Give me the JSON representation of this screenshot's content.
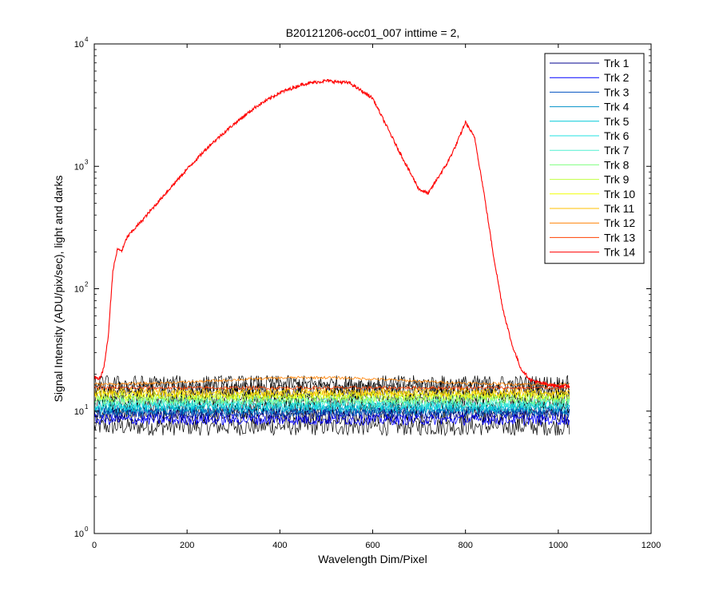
{
  "chart_data": {
    "type": "line",
    "title": "B20121206-occ01_007 inttime = 2,",
    "xlabel": "Wavelength Dim/Pixel",
    "ylabel": "Signal Intensity (ADU/pix/sec), light and darks",
    "xlim": [
      0,
      1200
    ],
    "ylim": [
      1,
      10000
    ],
    "y_scale": "log",
    "grid": false,
    "legend_position": "top-right",
    "x_ticks": [
      "0",
      "200",
      "400",
      "600",
      "800",
      "1000",
      "1200"
    ],
    "y_ticks": [
      {
        "base": "10",
        "exp": "0",
        "value": 1
      },
      {
        "base": "10",
        "exp": "1",
        "value": 10
      },
      {
        "base": "10",
        "exp": "2",
        "value": 100
      },
      {
        "base": "10",
        "exp": "3",
        "value": 1000
      },
      {
        "base": "10",
        "exp": "4",
        "value": 10000
      }
    ],
    "series": [
      {
        "name": "Trk 1",
        "color": "#00008f",
        "level": 9.5,
        "noise": 0.22
      },
      {
        "name": "Trk 2",
        "color": "#0000ff",
        "level": 8.5,
        "noise": 0.2
      },
      {
        "name": "Trk 3",
        "color": "#0050c0",
        "level": 9.8,
        "noise": 0.18
      },
      {
        "name": "Trk 4",
        "color": "#0090c8",
        "level": 10.3,
        "noise": 0.18
      },
      {
        "name": "Trk 5",
        "color": "#00c8d8",
        "level": 10.8,
        "noise": 0.18
      },
      {
        "name": "Trk 6",
        "color": "#20e0e0",
        "level": 11.2,
        "noise": 0.18
      },
      {
        "name": "Trk 7",
        "color": "#50f0d0",
        "level": 11.8,
        "noise": 0.18
      },
      {
        "name": "Trk 8",
        "color": "#80ff80",
        "level": 12.4,
        "noise": 0.17
      },
      {
        "name": "Trk 9",
        "color": "#c0ff40",
        "level": 13.0,
        "noise": 0.17
      },
      {
        "name": "Trk 10",
        "color": "#f0ff00",
        "level": 13.6,
        "noise": 0.16
      },
      {
        "name": "Trk 11",
        "color": "#ffc000",
        "level": 14.3,
        "noise": 0.15
      },
      {
        "name": "Trk 12",
        "color": "#ff8000",
        "level": 16.5,
        "noise": 0.05,
        "bump": 18.8
      },
      {
        "name": "Trk 13",
        "color": "#ff4000",
        "level": 15.5,
        "noise": 0.06
      },
      {
        "name": "Trk 14",
        "color": "#ff0000",
        "x": [
          0,
          10,
          20,
          30,
          40,
          50,
          60,
          70,
          80,
          100,
          150,
          200,
          250,
          300,
          350,
          400,
          450,
          500,
          550,
          600,
          650,
          680,
          700,
          720,
          740,
          760,
          780,
          800,
          820,
          840,
          860,
          880,
          900,
          920,
          940,
          960,
          980,
          1000,
          1024
        ],
        "y": [
          19,
          18,
          22,
          40,
          140,
          210,
          205,
          260,
          290,
          350,
          580,
          950,
          1500,
          2200,
          3100,
          4000,
          4700,
          5000,
          4800,
          3600,
          1500,
          900,
          650,
          600,
          800,
          1050,
          1500,
          2300,
          1700,
          600,
          190,
          70,
          35,
          22,
          18,
          17,
          16.5,
          16,
          16
        ]
      }
    ],
    "dark_frame_band": {
      "color": "#000000",
      "low": 7.5,
      "high": 16.5
    }
  }
}
